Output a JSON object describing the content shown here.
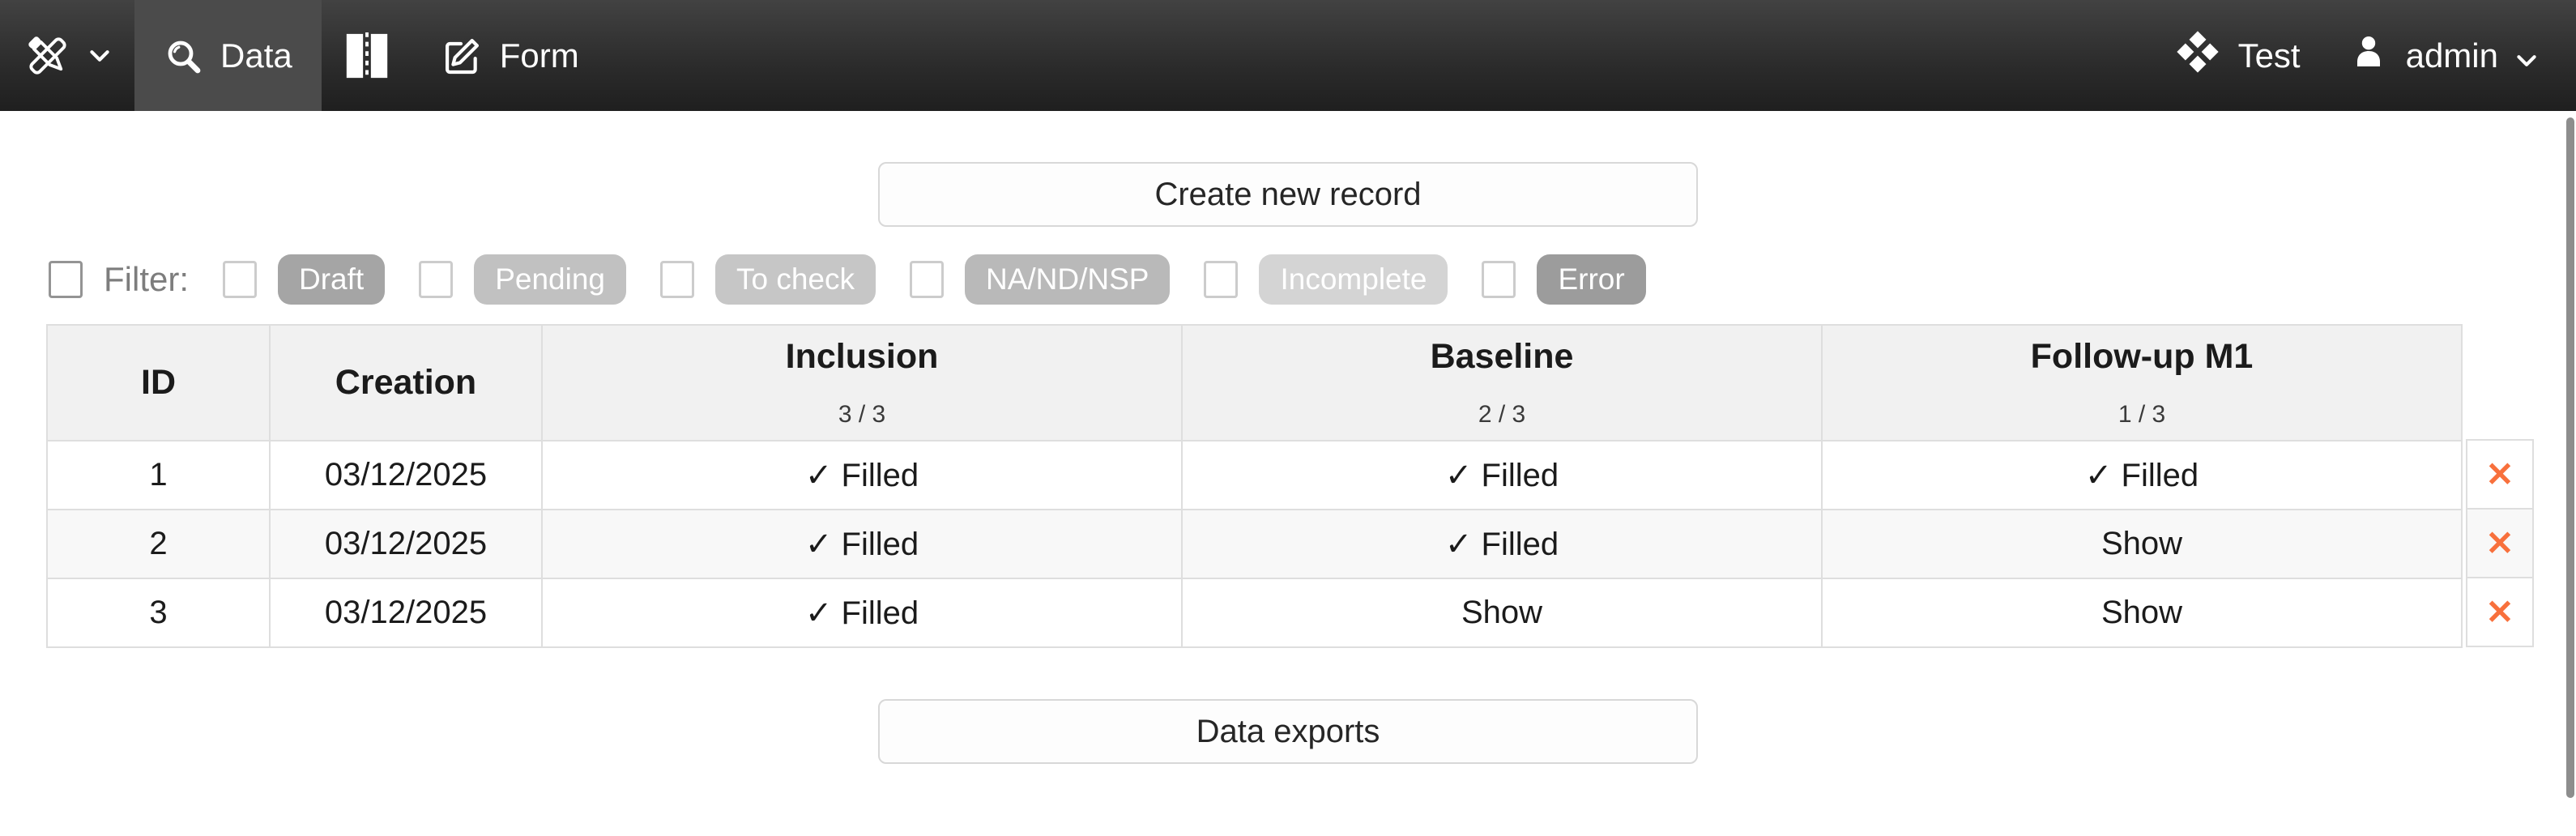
{
  "colors": {
    "filled": "#2e9170",
    "show": "#ef7136",
    "delete_x": "#f8703c",
    "navbar_active_tab": "#4b4b4b",
    "navbar_bg": "#2b2b2b"
  },
  "navbar": {
    "logo_icon": "pencil-eraser-logo-icon",
    "logo_chevron": "chevron-down-icon",
    "data_tab": {
      "label": "Data",
      "icon": "search-icon",
      "active": true
    },
    "split_button": {
      "icon": "split-view-icon"
    },
    "form_tab": {
      "label": "Form",
      "icon": "edit-pencil-square-icon",
      "active": false
    },
    "project": {
      "label": "Test",
      "icon": "gem-icon"
    },
    "user": {
      "label": "admin",
      "icon": "user-icon",
      "chevron": "chevron-down-icon"
    }
  },
  "actions": {
    "create_record": "Create new record",
    "data_exports": "Data exports"
  },
  "filter": {
    "label": "Filter:",
    "options": [
      {
        "label": "Draft",
        "color": "#a5a5a5"
      },
      {
        "label": "Pending",
        "color": "#c1c1c1"
      },
      {
        "label": "To check",
        "color": "#c6c6c6"
      },
      {
        "label": "NA/ND/NSP",
        "color": "#b9b9b9"
      },
      {
        "label": "Incomplete",
        "color": "#d4d4d4"
      },
      {
        "label": "Error",
        "color": "#9c9c9c"
      }
    ]
  },
  "table": {
    "columns": [
      {
        "label": "ID"
      },
      {
        "label": "Creation"
      },
      {
        "label": "Inclusion",
        "count": "3 / 3"
      },
      {
        "label": "Baseline",
        "count": "2 / 3"
      },
      {
        "label": "Follow-up M1",
        "count": "1 / 3"
      }
    ],
    "delete_glyph": "✕",
    "rows": [
      {
        "id": "1",
        "creation": "03/12/2025",
        "statuses": [
          {
            "state": "filled",
            "label": "✓ Filled"
          },
          {
            "state": "filled",
            "label": "✓ Filled"
          },
          {
            "state": "filled",
            "label": "✓ Filled"
          }
        ]
      },
      {
        "id": "2",
        "creation": "03/12/2025",
        "statuses": [
          {
            "state": "filled",
            "label": "✓ Filled"
          },
          {
            "state": "filled",
            "label": "✓ Filled"
          },
          {
            "state": "show",
            "label": "Show"
          }
        ]
      },
      {
        "id": "3",
        "creation": "03/12/2025",
        "statuses": [
          {
            "state": "filled",
            "label": "✓ Filled"
          },
          {
            "state": "show",
            "label": "Show"
          },
          {
            "state": "show",
            "label": "Show"
          }
        ]
      }
    ]
  }
}
